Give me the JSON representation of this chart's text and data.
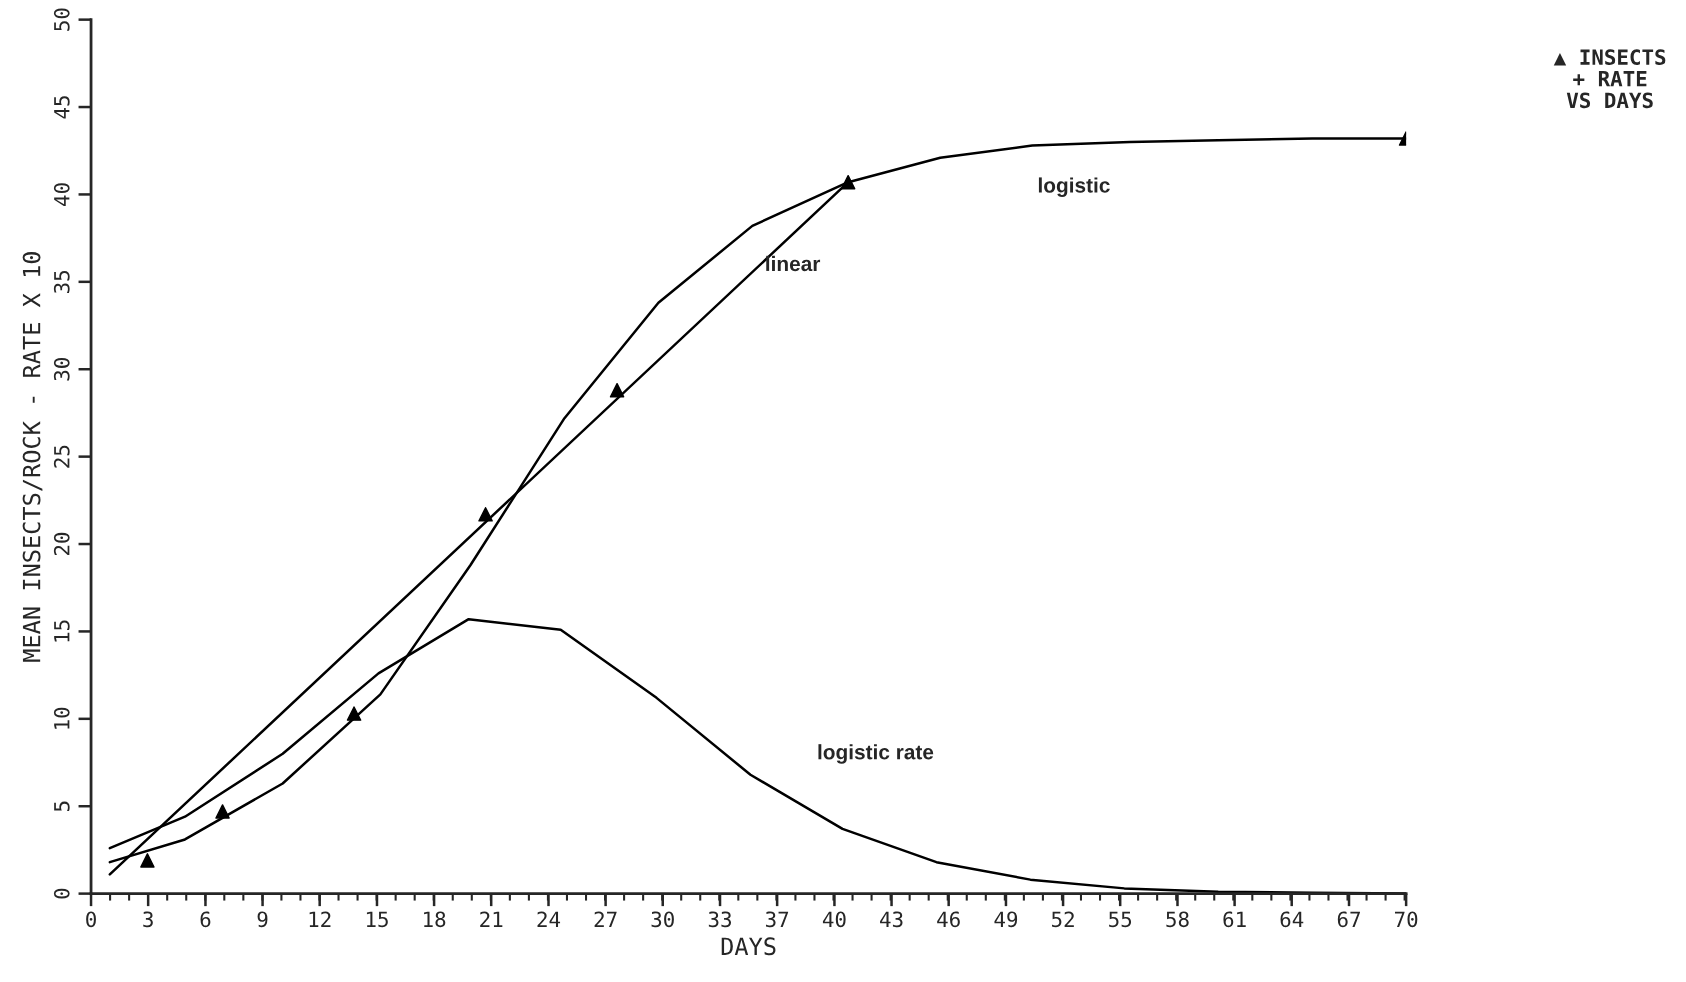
{
  "chart_data": {
    "type": "line",
    "xlabel": "DAYS",
    "ylabel": "MEAN INSECTS/ROCK - RATE X 10",
    "xlim": [
      0,
      70
    ],
    "ylim": [
      0,
      50
    ],
    "xticks": [
      {
        "value": 0,
        "label": "0"
      },
      {
        "value": 3.04,
        "label": "3"
      },
      {
        "value": 6.09,
        "label": "6"
      },
      {
        "value": 9.13,
        "label": "9"
      },
      {
        "value": 12.17,
        "label": "12"
      },
      {
        "value": 15.22,
        "label": "15"
      },
      {
        "value": 18.26,
        "label": "18"
      },
      {
        "value": 21.3,
        "label": "21"
      },
      {
        "value": 24.35,
        "label": "24"
      },
      {
        "value": 27.39,
        "label": "27"
      },
      {
        "value": 30.43,
        "label": "30"
      },
      {
        "value": 33.48,
        "label": "33"
      },
      {
        "value": 36.52,
        "label": "37"
      },
      {
        "value": 39.57,
        "label": "40"
      },
      {
        "value": 42.61,
        "label": "43"
      },
      {
        "value": 45.65,
        "label": "46"
      },
      {
        "value": 48.7,
        "label": "49"
      },
      {
        "value": 51.74,
        "label": "52"
      },
      {
        "value": 54.78,
        "label": "55"
      },
      {
        "value": 57.83,
        "label": "58"
      },
      {
        "value": 60.87,
        "label": "61"
      },
      {
        "value": 63.91,
        "label": "64"
      },
      {
        "value": 66.96,
        "label": "67"
      },
      {
        "value": 70,
        "label": "70"
      }
    ],
    "yticks": [
      0,
      5,
      10,
      15,
      20,
      25,
      30,
      35,
      40,
      45,
      50
    ],
    "grid": false,
    "legend": false,
    "series": [
      {
        "type": "scatter",
        "marker": "triangle",
        "color": "#000000",
        "x": [
          3,
          7,
          14,
          21,
          28,
          40.3,
          70
        ],
        "values": [
          1.9,
          4.7,
          10.3,
          21.7,
          28.8,
          40.7,
          43.2
        ]
      },
      {
        "name": "linear",
        "color": "#000000",
        "x": [
          1,
          40.3
        ],
        "values": [
          1.1,
          40.7
        ]
      },
      {
        "name": "logistic",
        "color": "#000000",
        "x": [
          1,
          5,
          10.2,
          15.4,
          20.2,
          25.2,
          30.2,
          35.2,
          40.3,
          45.2,
          50.1,
          55.3,
          60,
          65,
          70
        ],
        "values": [
          1.8,
          3.1,
          6.3,
          11.4,
          18.8,
          27.2,
          33.8,
          38.2,
          40.7,
          42.1,
          42.8,
          43.0,
          43.1,
          43.2,
          43.2
        ]
      },
      {
        "name": "logistic rate",
        "color": "#000000",
        "x": [
          1,
          5,
          10.2,
          15.3,
          20.1,
          25,
          30.1,
          35.1,
          40,
          45,
          50,
          55,
          60,
          65,
          70
        ],
        "values": [
          2.6,
          4.4,
          8.0,
          12.6,
          15.7,
          15.1,
          11.2,
          6.8,
          3.7,
          1.8,
          0.8,
          0.3,
          0.1,
          0.05,
          0
        ]
      }
    ],
    "annotations": [
      "▲ INSECTS",
      "+ RATE",
      "VS DAYS"
    ]
  }
}
